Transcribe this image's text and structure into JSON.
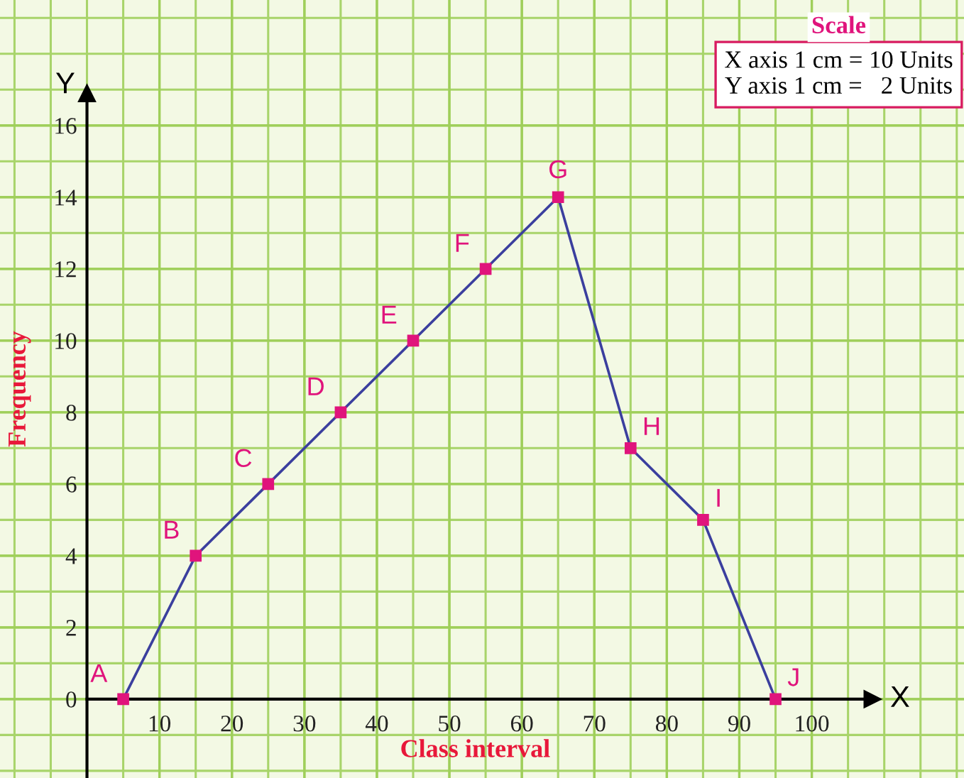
{
  "chart_data": {
    "type": "line",
    "xlabel": "Class interval",
    "ylabel": "Frequency",
    "x": [
      5,
      15,
      25,
      35,
      45,
      55,
      65,
      75,
      85,
      95
    ],
    "series": [
      {
        "color": "#3b3f9e",
        "values": [
          0,
          4,
          6,
          8,
          10,
          12,
          14,
          7,
          5,
          0
        ]
      }
    ],
    "marker": "square",
    "line_style": "solid",
    "xlim": [
      -12,
      121
    ],
    "ylim": [
      -2.2,
      19.5
    ],
    "xticks": [
      10,
      20,
      30,
      40,
      50,
      60,
      70,
      80,
      90,
      100
    ],
    "yticks": [
      0,
      2,
      4,
      6,
      8,
      10,
      12,
      14,
      16
    ],
    "grid": true,
    "annotations": [
      {
        "text": "A",
        "x": 5,
        "y": 0
      },
      {
        "text": "B",
        "x": 15,
        "y": 4
      },
      {
        "text": "C",
        "x": 25,
        "y": 6
      },
      {
        "text": "D",
        "x": 35,
        "y": 8
      },
      {
        "text": "E",
        "x": 45,
        "y": 10
      },
      {
        "text": "F",
        "x": 55,
        "y": 12
      },
      {
        "text": "G",
        "x": 65,
        "y": 14
      },
      {
        "text": "H",
        "x": 75,
        "y": 7
      },
      {
        "text": "I",
        "x": 85,
        "y": 5
      },
      {
        "text": "J",
        "x": 95,
        "y": 0
      },
      "Scale",
      "X axis 1 cm = 10 Units",
      "Y axis 1 cm =   2 Units",
      "X",
      "Y"
    ]
  }
}
